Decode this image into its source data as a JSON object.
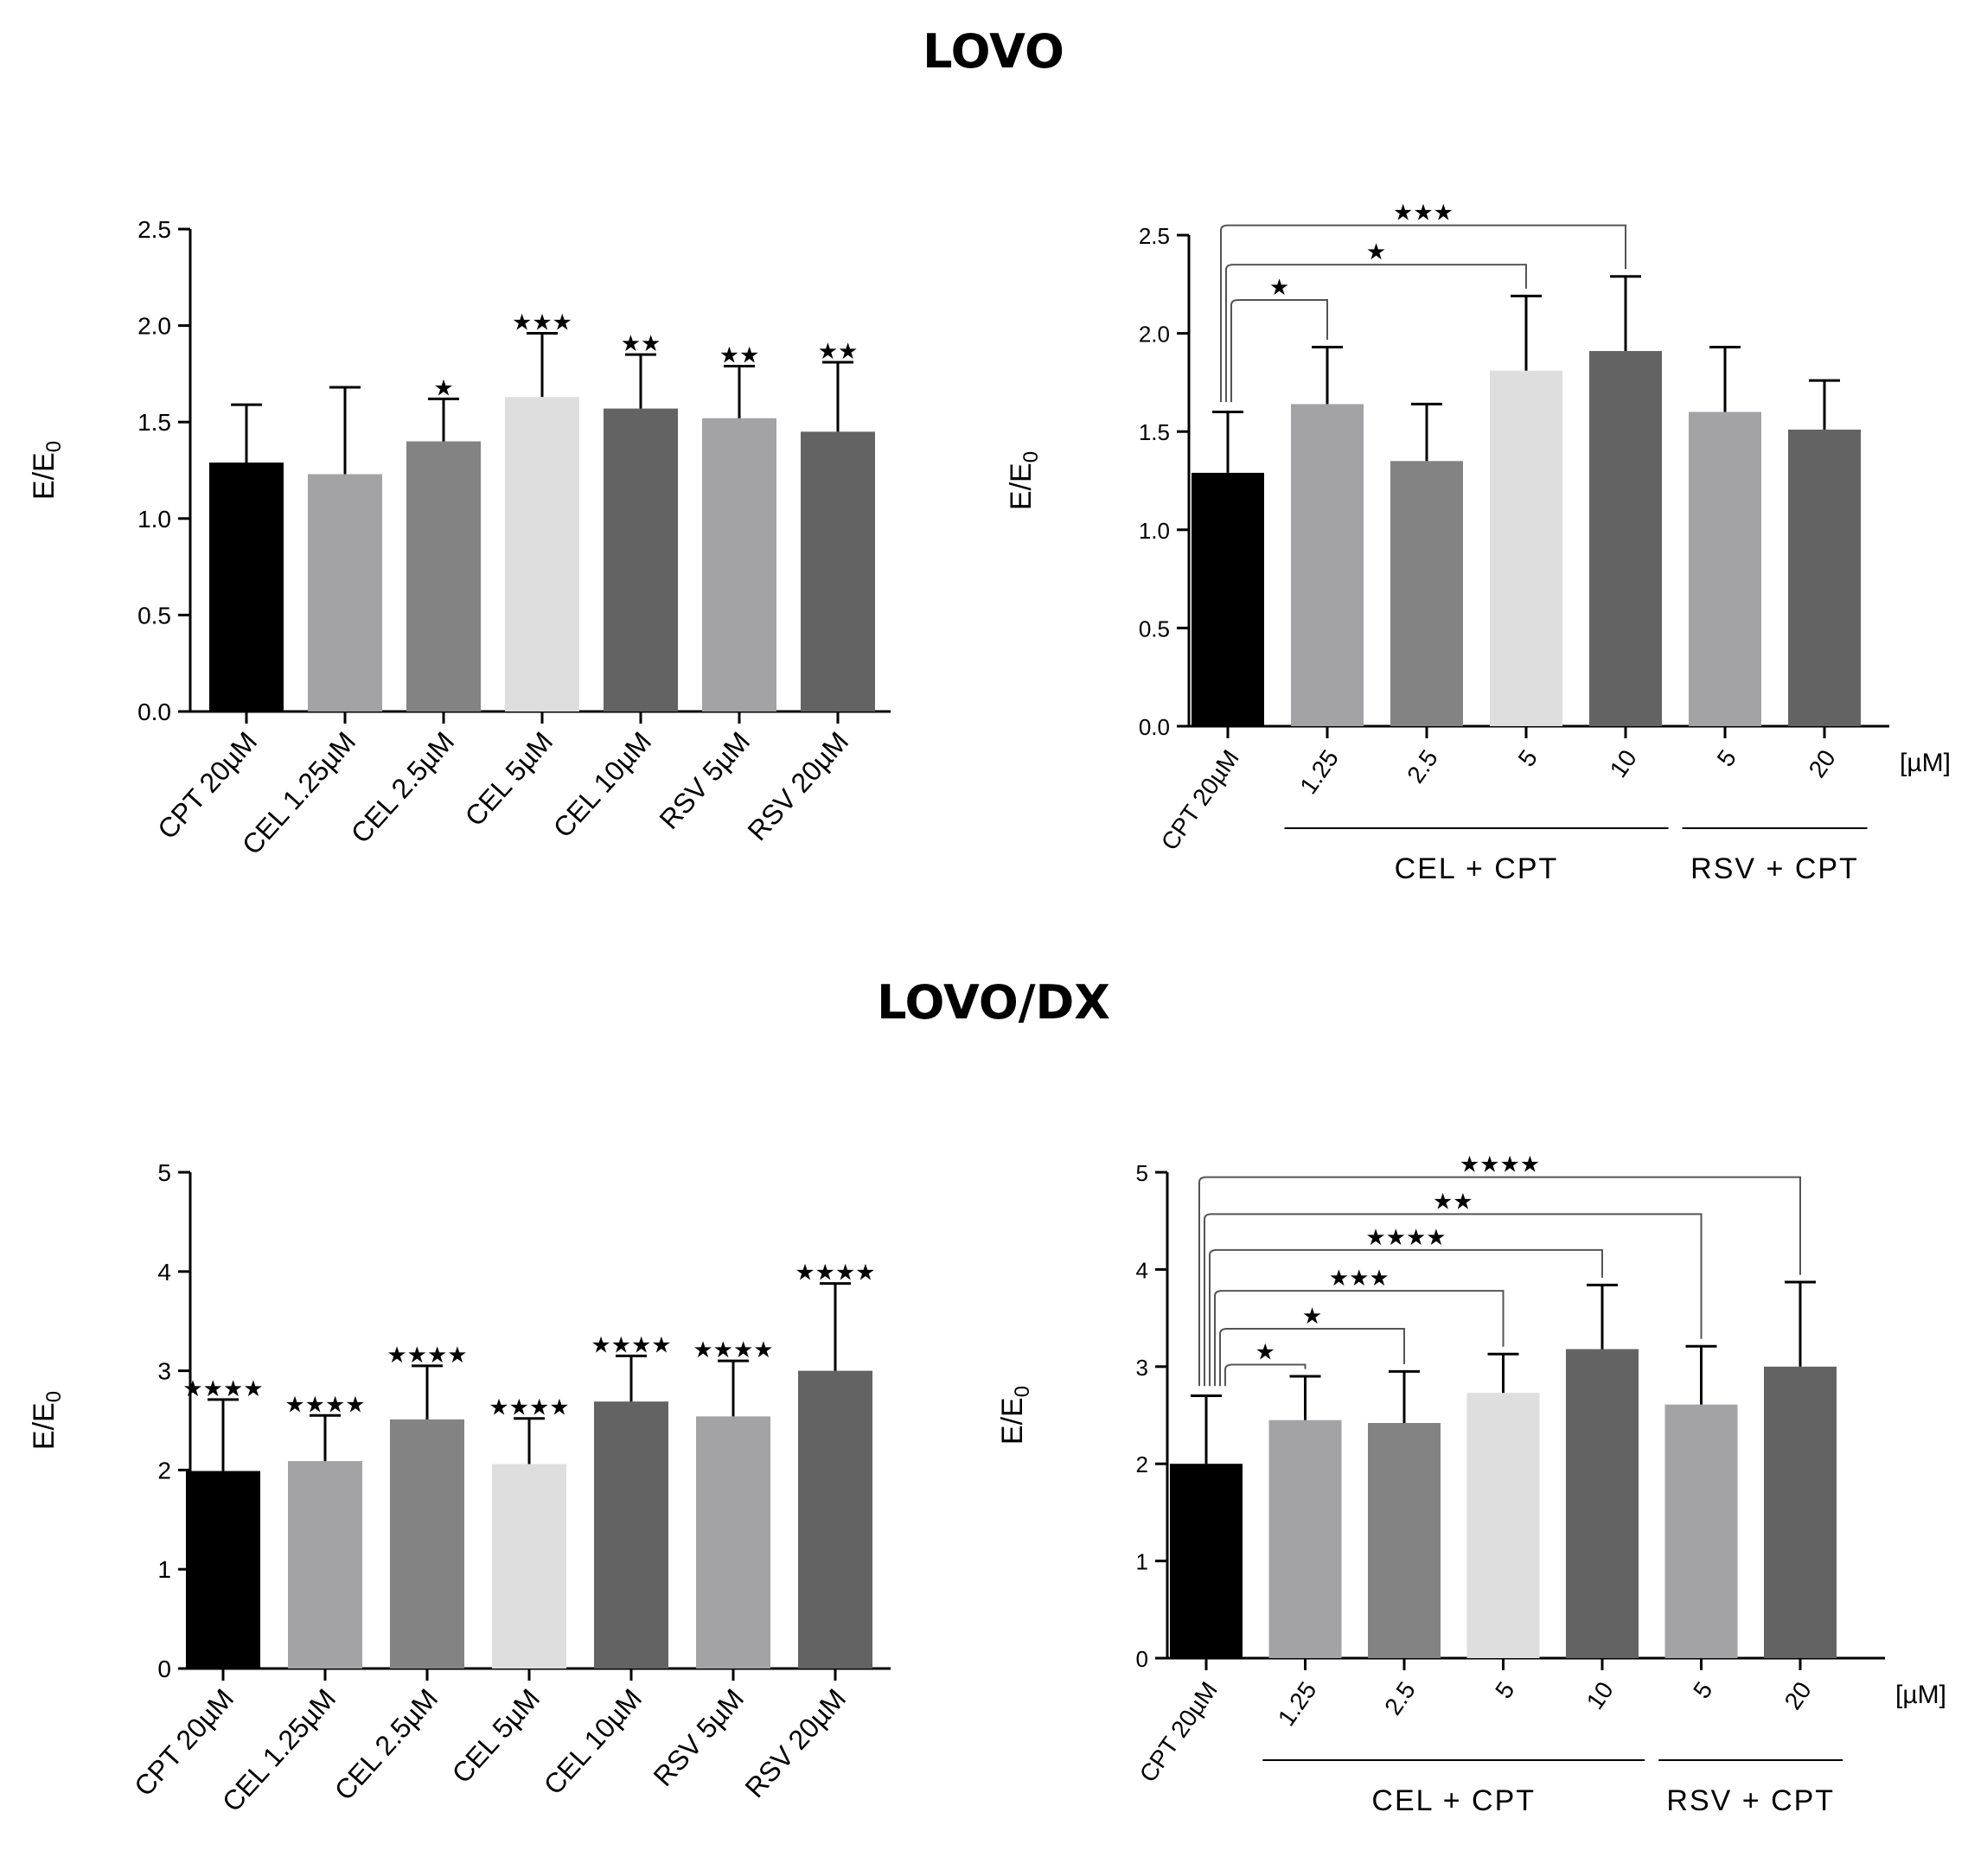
{
  "figure": {
    "title_top": "LOVO",
    "title_bottom": "LOVO/DX"
  },
  "chart_data": [
    {
      "id": "lovo-single",
      "type": "bar",
      "title": "LOVO",
      "ylabel": "E/E",
      "ylabel_sub": "0",
      "ylim": [
        0,
        2.5
      ],
      "yticks": [
        "0.0",
        "0.5",
        "1.0",
        "1.5",
        "2.0",
        "2.5"
      ],
      "categories": [
        "CPT 20µM",
        "CEL 1.25µM",
        "CEL 2.5µM",
        "CEL 5µM",
        "CEL 10µM",
        "RSV  5µM",
        "RSV 20µM"
      ],
      "values": [
        1.29,
        1.23,
        1.4,
        1.63,
        1.57,
        1.52,
        1.45
      ],
      "errors": [
        0.3,
        0.45,
        0.22,
        0.33,
        0.28,
        0.27,
        0.36
      ],
      "significance": [
        "",
        "",
        "★",
        "★★★",
        "★★",
        "★★",
        "★★"
      ],
      "colors": [
        "#000000",
        "#a3a3a6",
        "#838383",
        "#dedede",
        "#636363",
        "#a3a3a6",
        "#636363"
      ]
    },
    {
      "id": "lovo-combo",
      "type": "bar",
      "title": "LOVO",
      "ylabel": "E/E",
      "ylabel_sub": "0",
      "ylim": [
        0,
        2.5
      ],
      "yticks": [
        "0.0",
        "0.5",
        "1.0",
        "1.5",
        "2.0",
        "2.5"
      ],
      "categories": [
        "CPT 20µM",
        "1.25",
        "2.5",
        "5",
        "10",
        "5",
        "20"
      ],
      "unit_label": "[µM]",
      "groups": [
        {
          "label": "CEL + CPT",
          "from": 1,
          "to": 4
        },
        {
          "label": "RSV + CPT",
          "from": 5,
          "to": 6
        }
      ],
      "values": [
        1.29,
        1.64,
        1.35,
        1.81,
        1.91,
        1.6,
        1.51
      ],
      "errors": [
        0.31,
        0.29,
        0.29,
        0.38,
        0.38,
        0.33,
        0.25
      ],
      "colors": [
        "#000000",
        "#a3a3a6",
        "#838383",
        "#dedede",
        "#636363",
        "#a3a3a6",
        "#636363"
      ],
      "brackets": [
        {
          "to": 4,
          "level": 2.55,
          "label": "★★★"
        },
        {
          "to": 3,
          "level": 2.35,
          "label": "★"
        },
        {
          "to": 1,
          "level": 2.17,
          "label": "★"
        }
      ]
    },
    {
      "id": "lovodx-single",
      "type": "bar",
      "title": "LOVO/DX",
      "ylabel": "E/E",
      "ylabel_sub": "0",
      "ylim": [
        0,
        5
      ],
      "yticks": [
        "0",
        "1",
        "2",
        "3",
        "4",
        "5"
      ],
      "categories": [
        "CPT 20µM",
        "CEL 1.25µM",
        "CEL 2.5µM",
        "CEL 5µM",
        "CEL 10µM",
        "RSV 5µM",
        "RSV 20µM"
      ],
      "values": [
        1.99,
        2.09,
        2.51,
        2.06,
        2.69,
        2.54,
        3.0
      ],
      "errors": [
        0.72,
        0.46,
        0.54,
        0.46,
        0.46,
        0.56,
        0.88
      ],
      "significance": [
        "★★★★",
        "★★★★",
        "★★★★",
        "★★★★",
        "★★★★",
        "★★★★",
        "★★★★"
      ],
      "colors": [
        "#000000",
        "#a3a3a6",
        "#838383",
        "#dedede",
        "#636363",
        "#a3a3a6",
        "#636363"
      ]
    },
    {
      "id": "lovodx-combo",
      "type": "bar",
      "title": "LOVO/DX",
      "ylabel": "E/E",
      "ylabel_sub": "0",
      "ylim": [
        0,
        5
      ],
      "yticks": [
        "0",
        "1",
        "2",
        "3",
        "4",
        "5"
      ],
      "categories": [
        "CPT 20µM",
        "1.25",
        "2.5",
        "5",
        "10",
        "5",
        "20"
      ],
      "unit_label": "[µM]",
      "groups": [
        {
          "label": "CEL + CPT",
          "from": 1,
          "to": 4
        },
        {
          "label": "RSV + CPT",
          "from": 5,
          "to": 6
        }
      ],
      "values": [
        2.0,
        2.45,
        2.42,
        2.73,
        3.18,
        2.61,
        3.0
      ],
      "errors": [
        0.7,
        0.45,
        0.53,
        0.4,
        0.66,
        0.6,
        0.87
      ],
      "colors": [
        "#000000",
        "#a3a3a6",
        "#838383",
        "#dedede",
        "#636363",
        "#a3a3a6",
        "#636363"
      ],
      "brackets": [
        {
          "to": 6,
          "level": 4.95,
          "label": "★★★★"
        },
        {
          "to": 5,
          "level": 4.57,
          "label": "★★"
        },
        {
          "to": 4,
          "level": 4.2,
          "label": "★★★★"
        },
        {
          "to": 3,
          "level": 3.78,
          "label": "★★★"
        },
        {
          "to": 2,
          "level": 3.39,
          "label": "★"
        },
        {
          "to": 1,
          "level": 3.02,
          "label": "★"
        }
      ]
    }
  ]
}
